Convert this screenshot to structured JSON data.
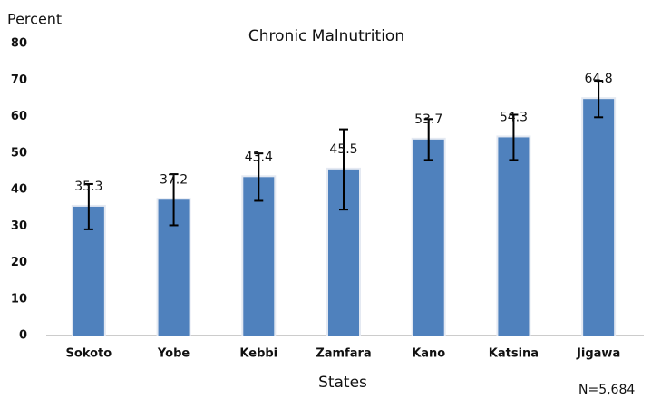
{
  "chart_data": {
    "type": "bar",
    "title": "Chronic Malnutrition",
    "y_label": "Percent",
    "x_label": "States",
    "note": "N=5,684",
    "categories": [
      "Sokoto",
      "Yobe",
      "Kebbi",
      "Zamfara",
      "Kano",
      "Katsina",
      "Jigawa"
    ],
    "values": [
      35.3,
      37.2,
      43.4,
      45.5,
      53.7,
      54.3,
      64.8
    ],
    "errors": [
      6.2,
      7,
      6.5,
      11,
      5.6,
      6.2,
      5
    ],
    "color": "#4f81bd",
    "ylim": [
      0,
      80
    ],
    "yticks": [
      0,
      10,
      20,
      30,
      40,
      50,
      60,
      70,
      80
    ],
    "grid": false
  }
}
